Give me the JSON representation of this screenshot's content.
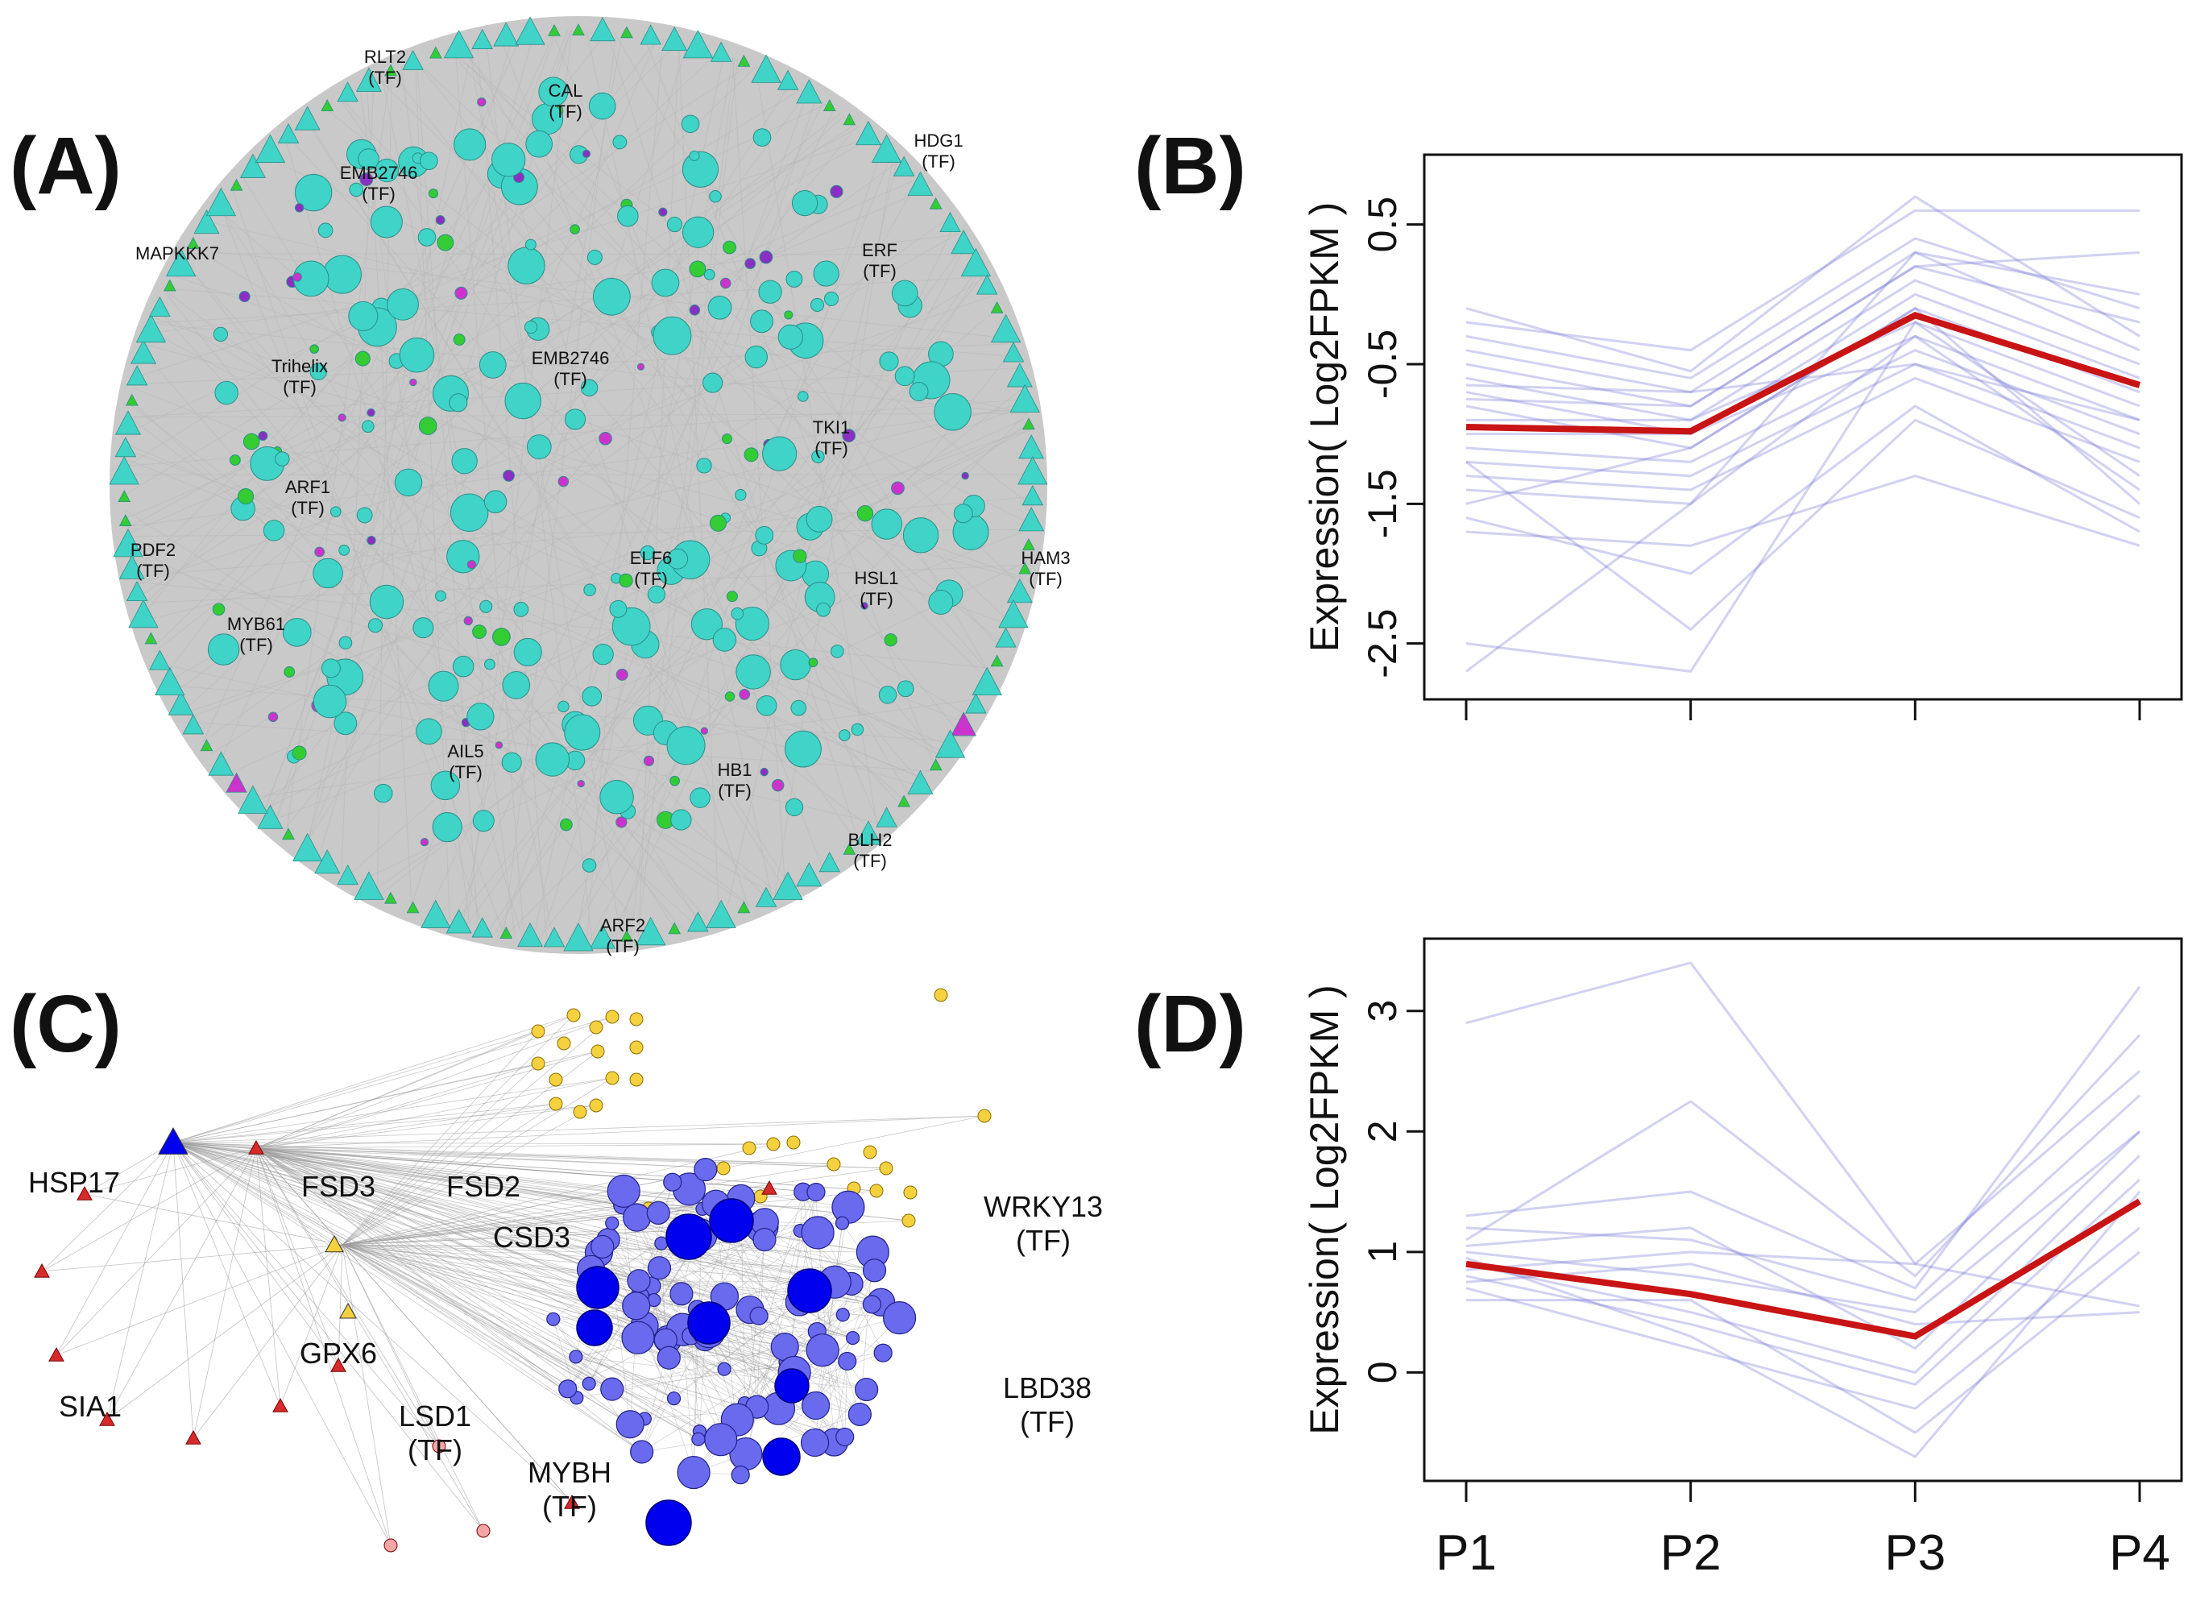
{
  "panel_labels": {
    "a": "(A)",
    "b": "(B)",
    "c": "(C)",
    "d": "(D)"
  },
  "tf_tag": "(TF)",
  "network_a": {
    "labels": [
      {
        "name": "RLT2",
        "tf": true
      },
      {
        "name": "CAL",
        "tf": true
      },
      {
        "name": "HDG1",
        "tf": true
      },
      {
        "name": "EMB2746",
        "tf": true
      },
      {
        "name": "MAPKKK7",
        "tf": false
      },
      {
        "name": "ERF",
        "tf": true
      },
      {
        "name": "Trihelix",
        "tf": true
      },
      {
        "name": "EMB2746",
        "tf": true
      },
      {
        "name": "TKI1",
        "tf": true
      },
      {
        "name": "ARF1",
        "tf": true
      },
      {
        "name": "PDF2",
        "tf": true
      },
      {
        "name": "ELF6",
        "tf": true
      },
      {
        "name": "HSL1",
        "tf": true
      },
      {
        "name": "HAM3",
        "tf": true
      },
      {
        "name": "MYB61",
        "tf": true
      },
      {
        "name": "AIL5",
        "tf": true
      },
      {
        "name": "HB1",
        "tf": true
      },
      {
        "name": "BLH2",
        "tf": true
      },
      {
        "name": "ARF2",
        "tf": true
      }
    ],
    "colors": {
      "bg": "#c9c9c9",
      "teal": "#40d3c8",
      "green": "#33cc33",
      "purple": "#8a2fc4",
      "magenta": "#cc33cc"
    }
  },
  "network_c": {
    "labels": [
      {
        "name": "HSP17",
        "tf": false
      },
      {
        "name": "FSD3",
        "tf": false
      },
      {
        "name": "FSD2",
        "tf": false
      },
      {
        "name": "CSD3",
        "tf": false
      },
      {
        "name": "WRKY13",
        "tf": true
      },
      {
        "name": "GPX6",
        "tf": false
      },
      {
        "name": "SIA1",
        "tf": false
      },
      {
        "name": "LSD1",
        "tf": true
      },
      {
        "name": "LBD38",
        "tf": true
      },
      {
        "name": "MYBH",
        "tf": true
      }
    ],
    "colors": {
      "blue": "#0000ee",
      "blue_light": "#6a6aee",
      "yellow": "#f5d140",
      "red": "#d62b2b",
      "pink": "#f4a6a6"
    }
  },
  "chart_data": [
    {
      "type": "line",
      "panel": "B",
      "categories": [
        "P1",
        "P2",
        "P3",
        "P4"
      ],
      "ylabel": "Expression( Log2FPKM )",
      "yticks": [
        0.5,
        -0.5,
        -1.5,
        -2.5
      ],
      "ylim": [
        -2.9,
        1.0
      ],
      "mean_series": {
        "name": "mean",
        "color": "#c81414",
        "values": [
          -0.95,
          -0.98,
          -0.15,
          -0.65
        ]
      },
      "series_color": "#7a7ad6",
      "series": [
        {
          "values": [
            -0.1,
            -0.55,
            0.7,
            -0.3
          ]
        },
        {
          "values": [
            -0.3,
            -0.6,
            0.4,
            -0.1
          ]
        },
        {
          "values": [
            -0.4,
            -0.7,
            0.3,
            0.0
          ]
        },
        {
          "values": [
            -0.5,
            -0.8,
            0.2,
            -0.2
          ]
        },
        {
          "values": [
            -0.6,
            -0.9,
            0.1,
            -0.5
          ]
        },
        {
          "values": [
            -0.7,
            -1.0,
            0.0,
            -0.6
          ]
        },
        {
          "values": [
            -0.8,
            -1.1,
            -0.1,
            -0.7
          ]
        },
        {
          "values": [
            -0.9,
            -0.9,
            -0.2,
            -0.8
          ]
        },
        {
          "values": [
            -1.0,
            -1.0,
            -0.3,
            -0.9
          ]
        },
        {
          "values": [
            -1.1,
            -1.2,
            -0.4,
            -1.0
          ]
        },
        {
          "values": [
            -1.2,
            -1.3,
            -0.5,
            -1.1
          ]
        },
        {
          "values": [
            -1.3,
            -1.4,
            -0.6,
            -1.2
          ]
        },
        {
          "values": [
            -1.4,
            -1.5,
            -0.3,
            -1.4
          ]
        },
        {
          "values": [
            -1.5,
            -1.1,
            -0.1,
            -1.5
          ]
        },
        {
          "values": [
            -1.6,
            -2.0,
            -0.8,
            -1.7
          ]
        },
        {
          "values": [
            -1.7,
            -1.8,
            -1.3,
            -1.8
          ]
        },
        {
          "values": [
            -2.5,
            -2.7,
            -0.2,
            -1.3
          ]
        },
        {
          "values": [
            -2.7,
            -1.5,
            0.3,
            -0.4
          ]
        },
        {
          "values": [
            -0.2,
            -0.4,
            0.6,
            0.6
          ]
        },
        {
          "values": [
            -0.75,
            -0.8,
            0.2,
            0.3
          ]
        },
        {
          "values": [
            -1.2,
            -2.4,
            -0.9,
            -1.6
          ]
        },
        {
          "values": [
            -0.65,
            -0.7,
            -0.5,
            -0.9
          ]
        }
      ]
    },
    {
      "type": "line",
      "panel": "D",
      "categories": [
        "P1",
        "P2",
        "P3",
        "P4"
      ],
      "ylabel": "Expression( Log2FPKM )",
      "yticks": [
        3,
        2,
        1,
        0
      ],
      "ylim": [
        -0.9,
        3.6
      ],
      "mean_series": {
        "name": "mean",
        "color": "#c81414",
        "values": [
          0.9,
          0.65,
          0.3,
          1.42
        ]
      },
      "series_color": "#7a7ad6",
      "series": [
        {
          "values": [
            2.9,
            3.4,
            0.9,
            0.55
          ]
        },
        {
          "values": [
            1.1,
            2.25,
            0.8,
            2.8
          ]
        },
        {
          "values": [
            1.3,
            1.5,
            0.7,
            3.2
          ]
        },
        {
          "values": [
            1.2,
            1.1,
            0.6,
            2.3
          ]
        },
        {
          "values": [
            1.0,
            0.8,
            0.5,
            2.0
          ]
        },
        {
          "values": [
            0.9,
            0.5,
            0.0,
            1.8
          ]
        },
        {
          "values": [
            0.8,
            0.4,
            -0.1,
            1.6
          ]
        },
        {
          "values": [
            0.7,
            0.2,
            -0.3,
            1.2
          ]
        },
        {
          "values": [
            0.6,
            0.6,
            -0.5,
            1.0
          ]
        },
        {
          "values": [
            1.05,
            1.2,
            0.2,
            2.0
          ]
        },
        {
          "values": [
            0.75,
            0.9,
            0.4,
            0.5
          ]
        },
        {
          "values": [
            0.95,
            0.3,
            -0.7,
            1.5
          ]
        },
        {
          "values": [
            0.85,
            1.0,
            0.9,
            2.5
          ]
        }
      ]
    }
  ]
}
